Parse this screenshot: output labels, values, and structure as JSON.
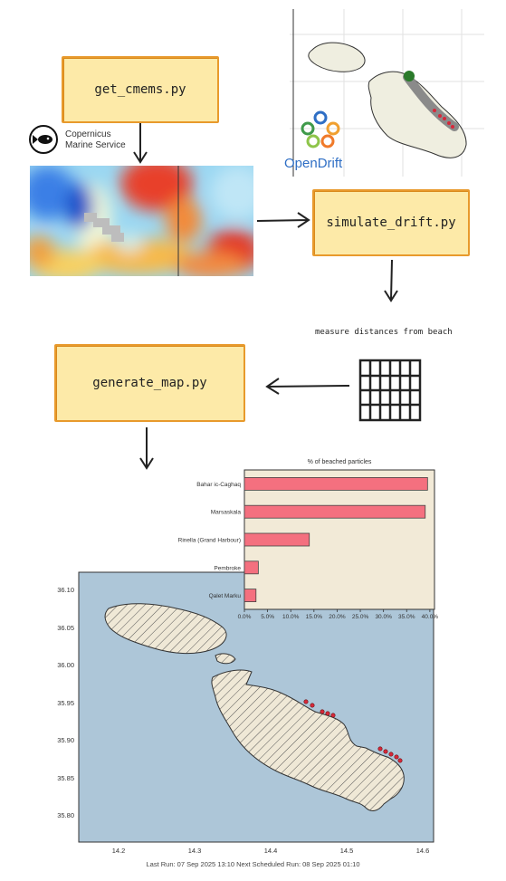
{
  "flow": {
    "step1": "get_cmems.py",
    "step2": "simulate_drift.py",
    "step3": "generate_map.py",
    "measure_caption": "measure distances from beach"
  },
  "logos": {
    "copernicus_line1": "Copernicus",
    "copernicus_line2": "Marine Service",
    "opendrift": "OpenDrift"
  },
  "colors": {
    "box_fill": "#fdeaa8",
    "box_border": "#e89a2c",
    "bar_fill": "#f4707f",
    "map_sea": "#adc6d8",
    "chart_bg": "#f2ead7"
  },
  "chart_data": [
    {
      "type": "bar",
      "orientation": "horizontal",
      "title": "% of beached particles",
      "categories": [
        "Bahar ic-Caghaq",
        "Marsaskala",
        "Rinella (Grand Harbour)",
        "Pembroke",
        "Qalet Marku"
      ],
      "values": [
        0.395,
        0.39,
        0.14,
        0.03,
        0.025
      ],
      "xlim": [
        0,
        0.41
      ],
      "xticks": [
        "0.0%",
        "5.0%",
        "10.0%",
        "15.0%",
        "20.0%",
        "25.0%",
        "30.0%",
        "35.0%",
        "40.0%"
      ]
    }
  ],
  "map": {
    "yticks": [
      "36.10",
      "36.05",
      "36.00",
      "35.95",
      "35.90",
      "35.85",
      "35.80"
    ],
    "xticks": [
      "14.2",
      "14.3",
      "14.4",
      "14.5",
      "14.6"
    ],
    "footer": "Last Run: 07 Sep 2025 13:10 Next Scheduled Run: 08 Sep 2025 01:10"
  }
}
